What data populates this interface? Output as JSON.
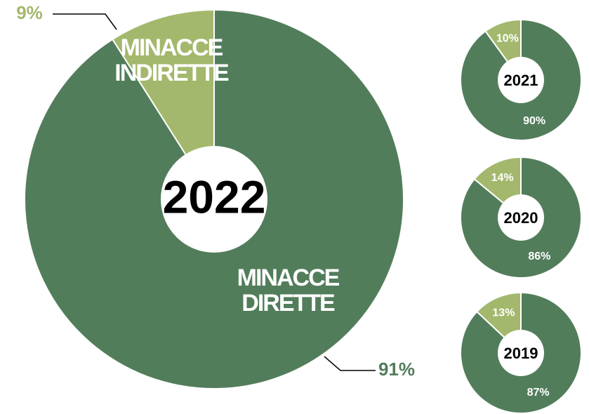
{
  "chart_data": [
    {
      "type": "donut",
      "title": "2022",
      "categories": [
        "MINACCE DIRETTE",
        "MINACCE INDIRETTE"
      ],
      "values": [
        91,
        9
      ],
      "value_labels": [
        "91%",
        "9%"
      ],
      "colors": [
        "#527d5b",
        "#a3b86c"
      ]
    },
    {
      "type": "donut",
      "title": "2021",
      "values": [
        90,
        10
      ],
      "value_labels": [
        "90%",
        "10%"
      ],
      "colors": [
        "#527d5b",
        "#a3b86c"
      ]
    },
    {
      "type": "donut",
      "title": "2020",
      "values": [
        86,
        14
      ],
      "value_labels": [
        "86%",
        "14%"
      ],
      "colors": [
        "#527d5b",
        "#a3b86c"
      ]
    },
    {
      "type": "donut",
      "title": "2019",
      "values": [
        87,
        13
      ],
      "value_labels": [
        "87%",
        "13%"
      ],
      "colors": [
        "#527d5b",
        "#a3b86c"
      ]
    }
  ]
}
